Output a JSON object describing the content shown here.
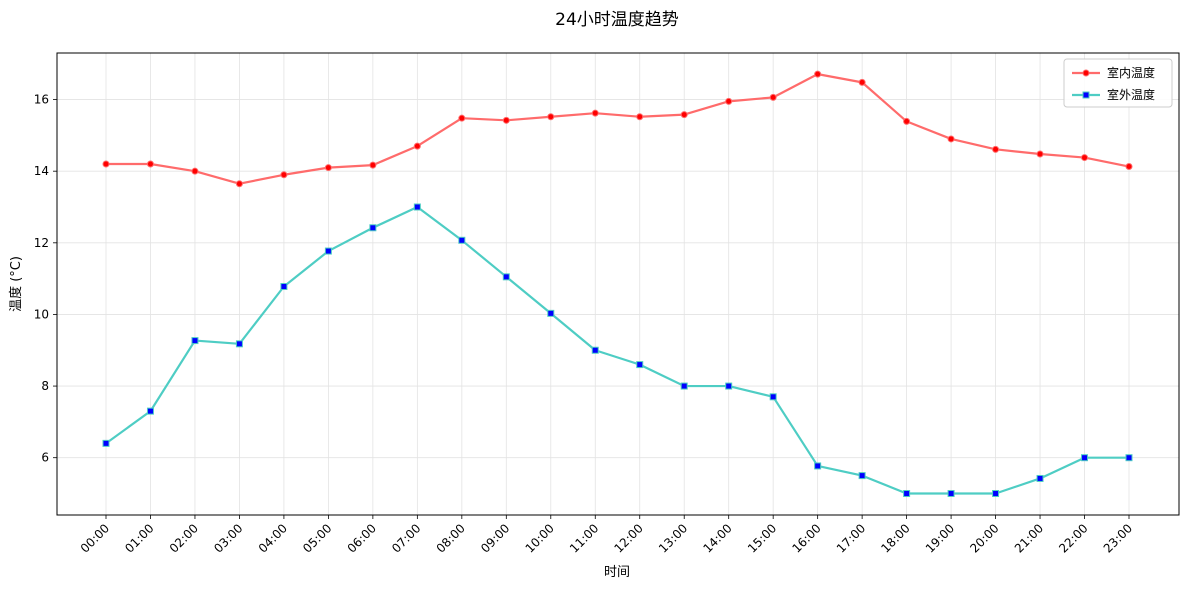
{
  "chart_data": {
    "type": "line",
    "title": "24小时温度趋势",
    "xlabel": "时间",
    "ylabel": "温度 (°C)",
    "categories": [
      "00:00",
      "01:00",
      "02:00",
      "03:00",
      "04:00",
      "05:00",
      "06:00",
      "07:00",
      "08:00",
      "09:00",
      "10:00",
      "11:00",
      "12:00",
      "13:00",
      "14:00",
      "15:00",
      "16:00",
      "17:00",
      "18:00",
      "19:00",
      "20:00",
      "21:00",
      "22:00",
      "23:00"
    ],
    "yticks": [
      "6",
      "8",
      "10",
      "12",
      "14",
      "16"
    ],
    "ylim": [
      4.4,
      17.3
    ],
    "grid": true,
    "legend_position": "top-right",
    "series": [
      {
        "name": "室内温度",
        "color": "#ff6b6b",
        "marker": "circle",
        "marker_color": "#ff0000",
        "values": [
          14.2,
          14.2,
          14.0,
          13.65,
          13.9,
          14.1,
          14.17,
          14.7,
          15.48,
          15.42,
          15.52,
          15.62,
          15.52,
          15.58,
          15.95,
          16.06,
          16.71,
          16.48,
          15.39,
          14.9,
          14.61,
          14.48,
          14.38,
          14.13
        ]
      },
      {
        "name": "室外温度",
        "color": "#4ecdc4",
        "marker": "square",
        "marker_color": "#0000ff",
        "values": [
          6.4,
          7.3,
          9.27,
          9.18,
          10.78,
          11.77,
          12.42,
          13.0,
          12.07,
          11.05,
          10.03,
          9.0,
          8.6,
          8.0,
          8.0,
          7.7,
          5.77,
          5.5,
          5.0,
          5.0,
          5.0,
          5.42,
          6.0,
          6.0
        ]
      }
    ]
  }
}
